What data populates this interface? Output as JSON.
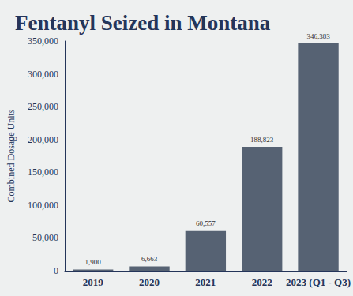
{
  "chart_data": {
    "type": "bar",
    "title": "Fentanyl Seized in Montana",
    "ylabel": "Combined Dosage Units",
    "categories": [
      "2019",
      "2020",
      "2021",
      "2022",
      "2023 (Q1 - Q3)"
    ],
    "values": [
      1900,
      6663,
      60557,
      188823,
      346383
    ],
    "value_labels": [
      "1,900",
      "6,663",
      "60,557",
      "188,823",
      "346,383"
    ],
    "color": "#566273",
    "ylim": [
      0,
      350000
    ],
    "yticks": [
      0,
      {
        "value": 50000,
        "label": "50,000"
      },
      {
        "value": 100000,
        "label": "100,000"
      },
      {
        "value": 150000,
        "label": "150,000"
      },
      {
        "value": 200000,
        "label": "200,000"
      },
      {
        "value": 250000,
        "label": "250,000"
      },
      {
        "value": 300000,
        "label": "300,000"
      },
      {
        "value": 350000,
        "label": "350,000"
      }
    ],
    "grid": false,
    "data_labels": true
  }
}
